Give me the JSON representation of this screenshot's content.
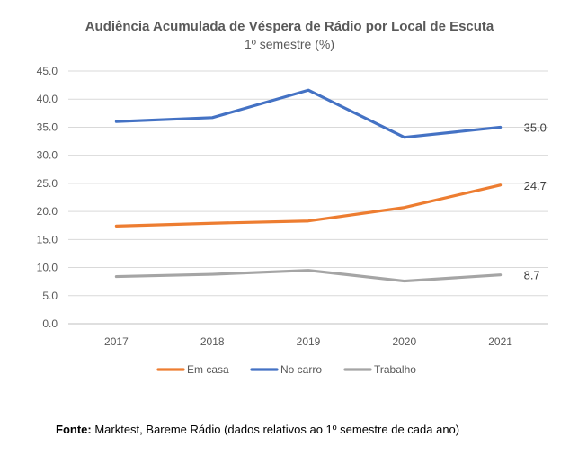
{
  "chart_data": {
    "type": "line",
    "title": "Audiência Acumulada de Véspera de Rádio por Local de Escuta",
    "subtitle": "1º semestre  (%)",
    "categories": [
      "2017",
      "2018",
      "2019",
      "2020",
      "2021"
    ],
    "ylim": [
      0,
      45
    ],
    "yticks": [
      "0.0",
      "5.0",
      "10.0",
      "15.0",
      "20.0",
      "25.0",
      "30.0",
      "35.0",
      "40.0",
      "45.0"
    ],
    "grid": true,
    "legend_position": "bottom",
    "series": [
      {
        "name": "Em casa",
        "color": "#ED7D31",
        "values": [
          17.4,
          17.9,
          18.3,
          20.7,
          24.7
        ],
        "end_label": "24.7"
      },
      {
        "name": "No carro",
        "color": "#4472C4",
        "values": [
          36.0,
          36.7,
          41.6,
          33.2,
          35.0
        ],
        "end_label": "35.0"
      },
      {
        "name": "Trabalho",
        "color": "#A5A5A5",
        "values": [
          8.4,
          8.8,
          9.5,
          7.6,
          8.7
        ],
        "end_label": "8.7"
      }
    ]
  },
  "source": {
    "label": "Fonte:",
    "text": " Marktest, Bareme Rádio (dados relativos ao 1º semestre de cada ano)"
  }
}
